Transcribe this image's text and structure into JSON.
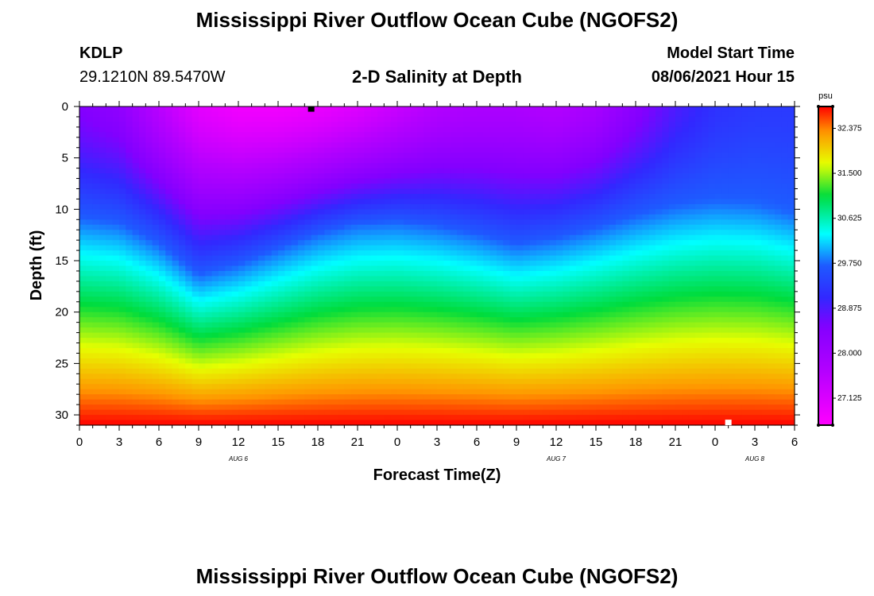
{
  "header": {
    "title": "Mississippi River Outflow Ocean Cube (NGOFS2)",
    "station": "KDLP",
    "coords": "29.1210N  89.5470W",
    "subtitle": "2-D Salinity at Depth",
    "start_label": "Model Start Time",
    "start_value": "08/06/2021 Hour 15"
  },
  "footer": {
    "title": "Mississippi River Outflow Ocean Cube (NGOFS2)"
  },
  "chart_data": {
    "type": "heatmap",
    "title": "2-D Salinity at Depth",
    "xlabel": "Forecast Time(Z)",
    "ylabel": "Depth (ft)",
    "x_tick_labels": [
      "0",
      "3",
      "6",
      "9",
      "12",
      "15",
      "18",
      "21",
      "0",
      "3",
      "6",
      "9",
      "12",
      "15",
      "18",
      "21",
      "0",
      "3",
      "6"
    ],
    "x_range_hours": [
      0,
      54
    ],
    "date_labels": [
      {
        "label": "AUG 6",
        "hour": 12
      },
      {
        "label": "AUG 7",
        "hour": 36
      },
      {
        "label": "AUG 8",
        "hour": 51
      }
    ],
    "y_tick_labels": [
      "0",
      "5",
      "10",
      "15",
      "20",
      "25",
      "30"
    ],
    "y_ticks": [
      0,
      5,
      10,
      15,
      20,
      25,
      30
    ],
    "ylim": [
      0,
      31
    ],
    "y_inverted": true,
    "colorbar": {
      "unit": "psu",
      "min": 26.6,
      "max": 32.8,
      "tick_values": [
        27.125,
        28.0,
        28.875,
        29.75,
        30.625,
        31.5,
        32.375
      ],
      "tick_labels": [
        "27.125",
        "28.000",
        "28.875",
        "29.750",
        "30.625",
        "31.500",
        "32.375"
      ]
    },
    "markers": [
      {
        "color": "#000000",
        "hour": 17.5,
        "depth": 0.2
      },
      {
        "color": "#ffffff",
        "hour": 49,
        "depth": 30.7
      }
    ],
    "salinity_profile": {
      "hours": [
        0,
        3,
        6,
        9,
        12,
        15,
        18,
        21,
        24,
        27,
        30,
        33,
        36,
        39,
        42,
        45,
        48,
        51,
        54
      ],
      "surface_psu": [
        28.5,
        28.3,
        27.6,
        27.0,
        26.8,
        26.8,
        26.9,
        27.1,
        27.4,
        27.7,
        27.8,
        27.8,
        27.7,
        27.9,
        28.4,
        28.9,
        29.2,
        29.3,
        29.3
      ],
      "depth_of_29_75_psu_ft": [
        11.0,
        11.5,
        13.5,
        16.5,
        15.5,
        14.0,
        12.5,
        11.5,
        11.3,
        11.8,
        12.6,
        13.6,
        13.0,
        12.0,
        10.8,
        9.8,
        9.3,
        9.5,
        10.5
      ],
      "bottom_psu": 32.8
    }
  }
}
